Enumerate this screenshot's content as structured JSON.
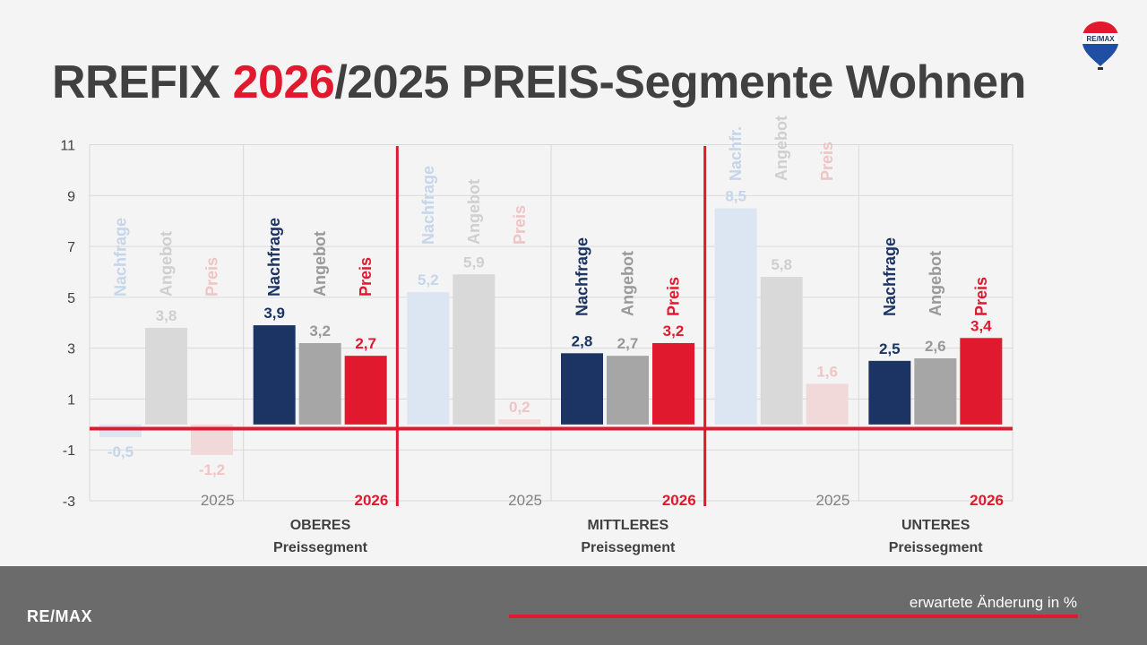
{
  "title": {
    "prefix": "RREFIX ",
    "highlight": "2026",
    "suffix": "/2025 PREIS-Segmente Wohnen"
  },
  "logo": {
    "text": "RE/MAX",
    "icon": "balloon-logo"
  },
  "footer": {
    "brand": "RE/MAX",
    "note": "erwartete Änderung in %"
  },
  "colors": {
    "accent": "#e0192e",
    "navy": "#1b3464",
    "grey": "#a6a6a6",
    "navy_faded": "#dce6f2",
    "grey_faded": "#d9d9d9",
    "red_faded": "#f2d9d9"
  },
  "chart_data": {
    "type": "bar",
    "ylim": [
      -3,
      11
    ],
    "yticks": [
      -3,
      -1,
      1,
      3,
      5,
      7,
      9,
      11
    ],
    "grid": true,
    "groups": [
      {
        "year": "2025",
        "segment": "",
        "segment2": "",
        "faded": true,
        "labels": [
          "Nachfrage",
          "Angebot",
          "Preis"
        ],
        "values": [
          -0.5,
          3.8,
          -1.2
        ],
        "value_labels": [
          "-0,5",
          "3,8",
          "-1,2"
        ]
      },
      {
        "year": "2026",
        "segment": "OBERES",
        "segment2": "Preissegment",
        "faded": false,
        "labels": [
          "Nachfrage",
          "Angebot",
          "Preis"
        ],
        "values": [
          3.9,
          3.2,
          2.7
        ],
        "value_labels": [
          "3,9",
          "3,2",
          "2,7"
        ]
      },
      {
        "year": "2025",
        "segment": "",
        "segment2": "",
        "faded": true,
        "labels": [
          "Nachfrage",
          "Angebot",
          "Preis"
        ],
        "values": [
          5.2,
          5.9,
          0.2
        ],
        "value_labels": [
          "5,2",
          "5,9",
          "0,2"
        ]
      },
      {
        "year": "2026",
        "segment": "MITTLERES",
        "segment2": "Preissegment",
        "faded": false,
        "labels": [
          "Nachfrage",
          "Angebot",
          "Preis"
        ],
        "values": [
          2.8,
          2.7,
          3.2
        ],
        "value_labels": [
          "2,8",
          "2,7",
          "3,2"
        ]
      },
      {
        "year": "2025",
        "segment": "",
        "segment2": "",
        "faded": true,
        "labels": [
          "Nachfr.",
          "Angebot",
          "Preis"
        ],
        "values": [
          8.5,
          5.8,
          1.6
        ],
        "value_labels": [
          "8,5",
          "5,8",
          "1,6"
        ]
      },
      {
        "year": "2026",
        "segment": "UNTERES",
        "segment2": "Preissegment",
        "faded": false,
        "labels": [
          "Nachfrage",
          "Angebot",
          "Preis"
        ],
        "values": [
          2.5,
          2.6,
          3.4
        ],
        "value_labels": [
          "2,5",
          "2,6",
          "3,4"
        ]
      }
    ]
  }
}
